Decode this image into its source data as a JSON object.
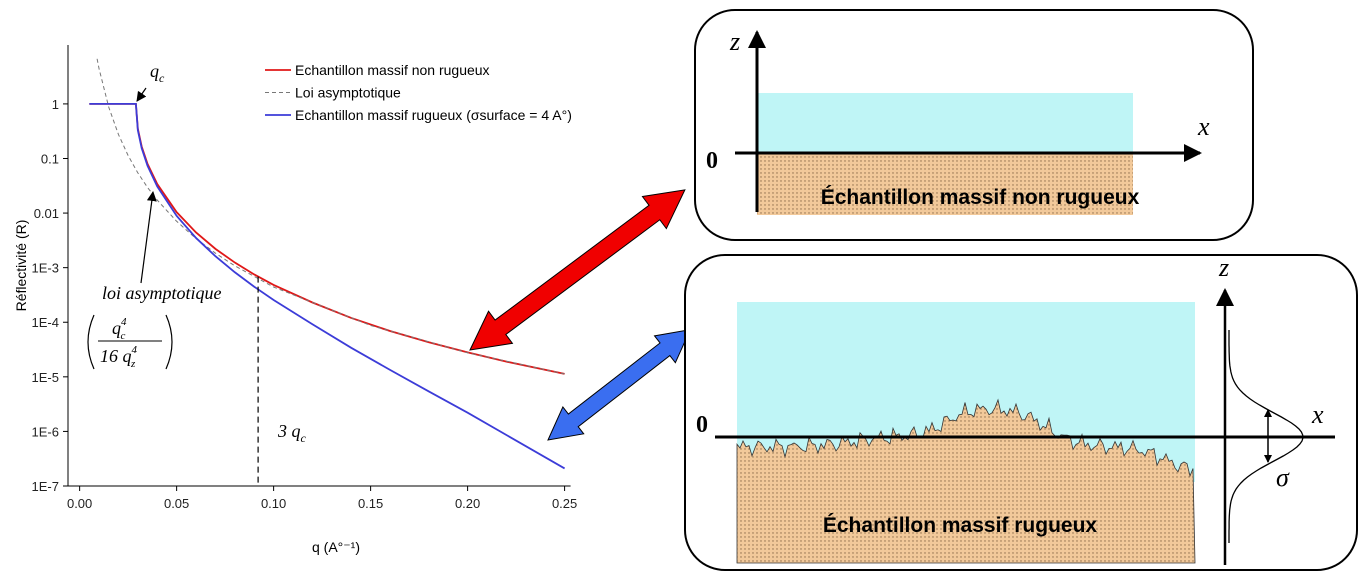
{
  "chart_data": {
    "type": "line",
    "x_label": "q (A°⁻¹)",
    "y_label": "Réflectivité (R)",
    "xlim": [
      -0.006,
      0.26
    ],
    "xticks": [
      {
        "value": 0,
        "label": "0.00"
      },
      {
        "value": 0.05,
        "label": "0.05"
      },
      {
        "value": 0.1,
        "label": "0.10"
      },
      {
        "value": 0.15,
        "label": "0.15"
      },
      {
        "value": 0.2,
        "label": "0.20"
      },
      {
        "value": 0.25,
        "label": "0.25"
      }
    ],
    "ylim": [
      1e-07,
      12
    ],
    "log_y": true,
    "yticks": [
      {
        "value": 1e-07,
        "label": "1E-7"
      },
      {
        "value": 1e-06,
        "label": "1E-6"
      },
      {
        "value": 1e-05,
        "label": "1E-5"
      },
      {
        "value": 0.0001,
        "label": "1E-4"
      },
      {
        "value": 0.001,
        "label": "1E-3"
      },
      0.01,
      0.1,
      1
    ],
    "legend": "top-right",
    "series": [
      {
        "name": "Echantillon massif non rugueux",
        "color": "#e01818",
        "dash": false,
        "x": [
          0.005,
          0.01,
          0.015,
          0.02,
          0.025,
          0.029,
          0.03,
          0.032,
          0.035,
          0.04,
          0.05,
          0.06,
          0.07,
          0.08,
          0.09,
          0.1,
          0.12,
          0.14,
          0.16,
          0.18,
          0.2,
          0.22,
          0.25
        ],
        "values": [
          1,
          1,
          1,
          1,
          1,
          1,
          0.351,
          0.165,
          0.0796,
          0.034,
          0.0104,
          0.00441,
          0.00221,
          0.00124,
          0.00075,
          0.000483,
          0.00023,
          0.00012,
          6.9e-05,
          4.3e-05,
          2.8e-05,
          1.9e-05,
          1.13e-05
        ]
      },
      {
        "name": "Loi asymptotique",
        "color": "#777777",
        "dash": true,
        "x": [
          0.009,
          0.01,
          0.015,
          0.02,
          0.025,
          0.03,
          0.035,
          0.04,
          0.05,
          0.06,
          0.07,
          0.08,
          0.1,
          0.15,
          0.2,
          0.25
        ],
        "values": [
          6.7,
          4.42,
          0.873,
          0.276,
          0.113,
          0.0546,
          0.0295,
          0.0173,
          0.00707,
          0.00341,
          0.00184,
          0.00108,
          0.000442,
          8.73e-05,
          2.76e-05,
          1.13e-05
        ]
      },
      {
        "name": "Echantillon massif rugueux (σsurface = 4 A°)",
        "color": "#3c3cd8",
        "dash": false,
        "x": [
          0.005,
          0.01,
          0.015,
          0.02,
          0.025,
          0.029,
          0.03,
          0.032,
          0.035,
          0.04,
          0.05,
          0.06,
          0.07,
          0.08,
          0.09,
          0.1,
          0.12,
          0.14,
          0.16,
          0.18,
          0.2,
          0.22,
          0.25
        ],
        "values": [
          1,
          1,
          1,
          1,
          1,
          1,
          0.331,
          0.154,
          0.0736,
          0.0307,
          0.0089,
          0.0035,
          0.00162,
          0.000823,
          0.000447,
          0.000255,
          9.2e-05,
          3.4e-05,
          1.34e-05,
          5.4e-06,
          2.2e-06,
          8.6e-07,
          2.1e-07
        ]
      }
    ],
    "annotations": [
      {
        "text": "q",
        "sub": "c"
      },
      {
        "text": "loi asymptotique"
      },
      {
        "num": "q",
        "num_sub": "c",
        "num_sup": "4",
        "den": "16 q",
        "den_sub": "z",
        "den_sup": "4"
      },
      {
        "text": "3 q",
        "sub": "c",
        "x": 0.092
      }
    ]
  },
  "diagrams": {
    "top": {
      "z": "z",
      "x": "x",
      "origin": "0",
      "label": "Échantillon massif non rugueux"
    },
    "bottom": {
      "z": "z",
      "x": "x",
      "origin": "0",
      "label": "Échantillon massif rugueux",
      "sigma": "σ"
    }
  }
}
